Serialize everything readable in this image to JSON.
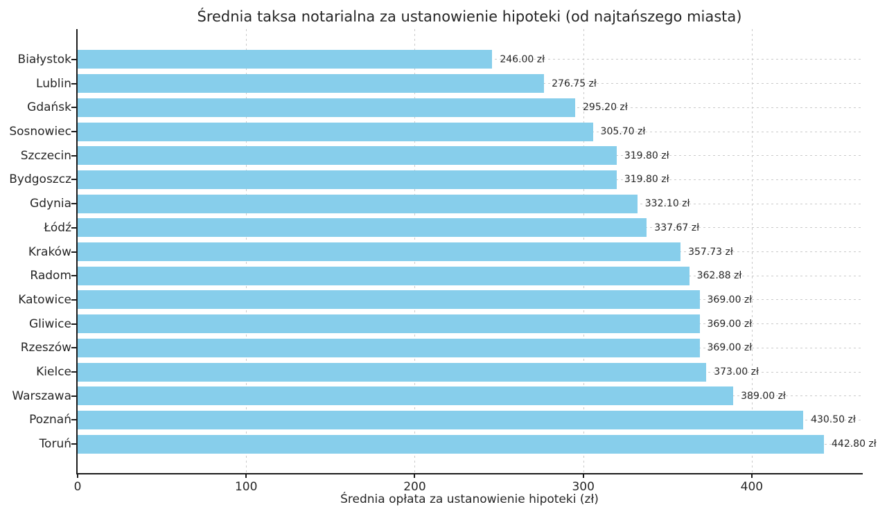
{
  "chart_data": {
    "type": "bar",
    "orientation": "horizontal",
    "title": "Średnia taksa notarialna za ustanowienie hipoteki (od najtańszego miasta)",
    "xlabel": "Średnia opłata za ustanowienie hipoteki (zł)",
    "ylabel": "",
    "categories": [
      "Białystok",
      "Lublin",
      "Gdańsk",
      "Sosnowiec",
      "Szczecin",
      "Bydgoszcz",
      "Gdynia",
      "Łódź",
      "Kraków",
      "Radom",
      "Katowice",
      "Gliwice",
      "Rzeszów",
      "Kielce",
      "Warszawa",
      "Poznań",
      "Toruń"
    ],
    "values": [
      246.0,
      276.75,
      295.2,
      305.7,
      319.8,
      319.8,
      332.1,
      337.67,
      357.73,
      362.88,
      369.0,
      369.0,
      369.0,
      373.0,
      389.0,
      430.5,
      442.8
    ],
    "value_labels": [
      "246.00 zł",
      "276.75 zł",
      "295.20 zł",
      "305.70 zł",
      "319.80 zł",
      "319.80 zł",
      "332.10 zł",
      "337.67 zł",
      "357.73 zł",
      "362.88 zł",
      "369.00 zł",
      "369.00 zł",
      "369.00 zł",
      "373.00 zł",
      "389.00 zł",
      "430.50 zł",
      "442.80 zł"
    ],
    "x_ticks": [
      0,
      100,
      200,
      300,
      400
    ],
    "x_tick_labels": [
      "0",
      "100",
      "200",
      "300",
      "400"
    ],
    "xlim": [
      0,
      465
    ],
    "grid": true,
    "legend": false,
    "colors": {
      "bar": "#87CEEB",
      "grid": "#c9c9c9",
      "text": "#262626",
      "spine": "#1a1a1a"
    }
  }
}
